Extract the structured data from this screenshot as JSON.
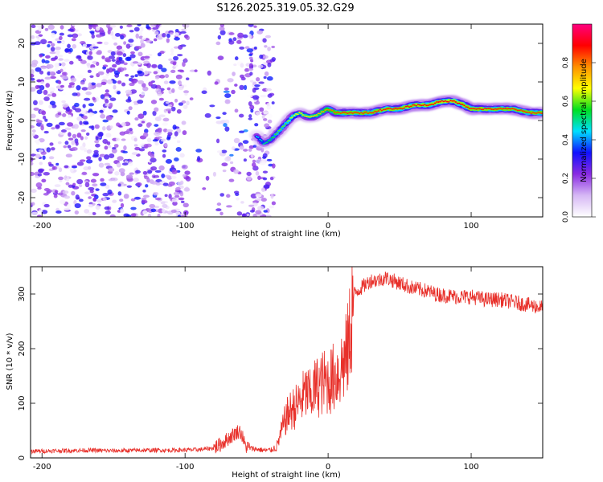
{
  "title": "S126.2025.319.05.32.G29",
  "chart_data": [
    {
      "type": "heatmap",
      "xlabel": "Height of straight line (km)",
      "ylabel": "Frequency (Hz)",
      "xlim": [
        -208,
        150
      ],
      "ylim": [
        -25,
        25
      ],
      "x_ticks": [
        -200,
        -100,
        0,
        100
      ],
      "y_ticks": [
        -20,
        -10,
        0,
        10,
        20
      ],
      "colorbar": {
        "label": "Normalized spectral amplitude",
        "range": [
          0,
          1
        ],
        "ticks": [
          0.0,
          0.2,
          0.4,
          0.6,
          0.8
        ],
        "tick_labels": [
          "0.0",
          "0.2",
          "0.4",
          "0.6",
          "0.8"
        ],
        "colors": [
          "#ffffff",
          "#d6b8f5",
          "#8a2be2",
          "#1010ff",
          "#00e0ff",
          "#00e020",
          "#ffff00",
          "#ff9000",
          "#ff0000",
          "#ff007f"
        ]
      },
      "noise": {
        "x_range": [
          -208,
          -38
        ],
        "amplitude": 0.35,
        "gap_x": [
          -98,
          -78
        ],
        "sparse_x": [
          -78,
          -55
        ]
      },
      "ridge": {
        "x": [
          -50,
          -45,
          -40,
          -35,
          -30,
          -25,
          -20,
          -15,
          -10,
          -5,
          0,
          5,
          10,
          20,
          30,
          40,
          50,
          60,
          70,
          80,
          88,
          95,
          100,
          110,
          120,
          130,
          140,
          150
        ],
        "frequency": [
          -4,
          -6,
          -5,
          -3,
          -1,
          1,
          2,
          1,
          1,
          2,
          3,
          2,
          2,
          2,
          2,
          3,
          3,
          4,
          4,
          5,
          5,
          4,
          3,
          3,
          3,
          3,
          2,
          2
        ],
        "amplitude": [
          0.45,
          0.5,
          0.55,
          0.6,
          0.6,
          0.65,
          0.7,
          0.7,
          0.72,
          0.75,
          0.8,
          0.82,
          0.85,
          0.85,
          0.85,
          0.87,
          0.87,
          0.88,
          0.88,
          0.9,
          0.9,
          0.88,
          0.87,
          0.87,
          0.86,
          0.86,
          0.85,
          0.85
        ]
      }
    },
    {
      "type": "line",
      "xlabel": "Height of straight line (km)",
      "ylabel": "SNR (10 * v/v)",
      "xlim": [
        -208,
        150
      ],
      "ylim": [
        0,
        350
      ],
      "x_ticks": [
        -200,
        -100,
        0,
        100
      ],
      "y_ticks": [
        0,
        100,
        200,
        300
      ],
      "color": "#e8302a",
      "series": [
        {
          "name": "SNR",
          "x": [
            -208,
            -190,
            -170,
            -150,
            -130,
            -110,
            -90,
            -80,
            -75,
            -70,
            -65,
            -62,
            -60,
            -58,
            -55,
            -50,
            -45,
            -40,
            -36,
            -33,
            -30,
            -28,
            -25,
            -22,
            -18,
            -15,
            -12,
            -10,
            -8,
            -5,
            -2,
            0,
            3,
            5,
            8,
            10,
            12,
            14,
            16,
            17,
            18,
            20,
            25,
            30,
            35,
            40,
            45,
            50,
            55,
            60,
            65,
            70,
            75,
            80,
            90,
            100,
            110,
            120,
            130,
            140,
            150
          ],
          "y": [
            12,
            13,
            14,
            13,
            14,
            14,
            15,
            18,
            25,
            35,
            45,
            50,
            40,
            22,
            18,
            16,
            14,
            14,
            20,
            45,
            70,
            80,
            90,
            95,
            110,
            120,
            110,
            125,
            130,
            135,
            140,
            138,
            145,
            150,
            160,
            170,
            180,
            200,
            250,
            280,
            300,
            305,
            315,
            325,
            325,
            330,
            325,
            320,
            315,
            310,
            308,
            305,
            300,
            298,
            295,
            295,
            290,
            290,
            285,
            280,
            275
          ]
        }
      ]
    }
  ]
}
